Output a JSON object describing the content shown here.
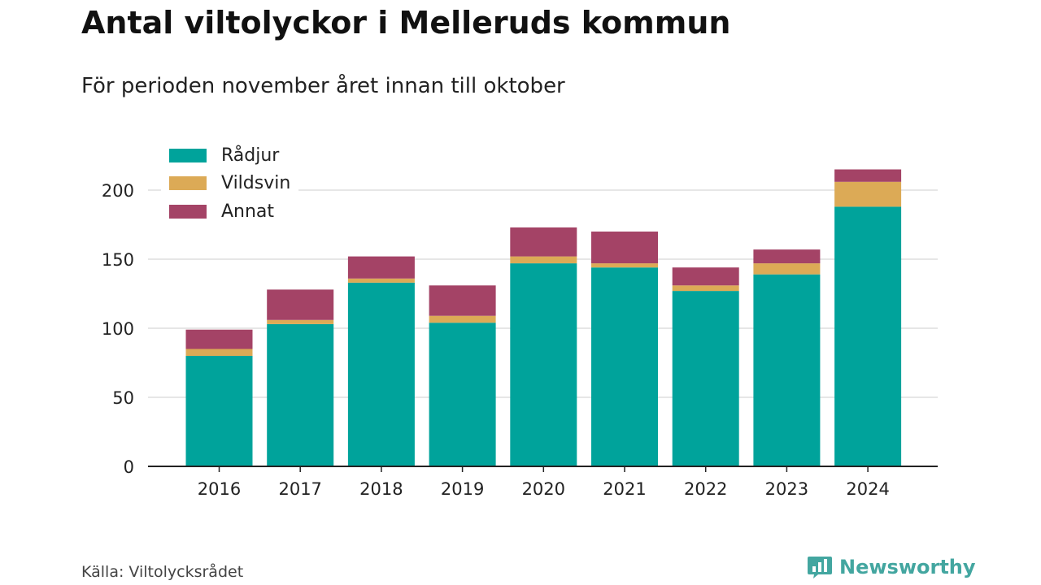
{
  "header": {
    "title": "Antal viltolyckor i Melleruds kommun",
    "subtitle": "För perioden november året innan till oktober"
  },
  "footer": {
    "source": "Källa: Viltolycksrådet",
    "brand": "Newsworthy",
    "brand_color": "#43a6a0"
  },
  "legend": {
    "items": [
      {
        "label": "Rådjur",
        "color": "#00a39b"
      },
      {
        "label": "Vildsvin",
        "color": "#dcaa56"
      },
      {
        "label": "Annat",
        "color": "#a44366"
      }
    ]
  },
  "chart_data": {
    "type": "bar",
    "stacked": true,
    "title": "Antal viltolyckor i Melleruds kommun",
    "subtitle": "För perioden november året innan till oktober",
    "categories": [
      "2016",
      "2017",
      "2018",
      "2019",
      "2020",
      "2021",
      "2022",
      "2023",
      "2024"
    ],
    "series": [
      {
        "name": "Rådjur",
        "color": "#00a39b",
        "values": [
          80,
          103,
          133,
          104,
          147,
          144,
          127,
          139,
          188
        ]
      },
      {
        "name": "Vildsvin",
        "color": "#dcaa56",
        "values": [
          5,
          3,
          3,
          5,
          5,
          3,
          4,
          8,
          18
        ]
      },
      {
        "name": "Annat",
        "color": "#a44366",
        "values": [
          14,
          22,
          16,
          22,
          21,
          23,
          13,
          10,
          9
        ]
      }
    ],
    "y_ticks": [
      "0",
      "50",
      "100",
      "150",
      "200"
    ],
    "ylim": [
      0,
      220
    ],
    "grid": true,
    "legend_position": "top-left"
  }
}
